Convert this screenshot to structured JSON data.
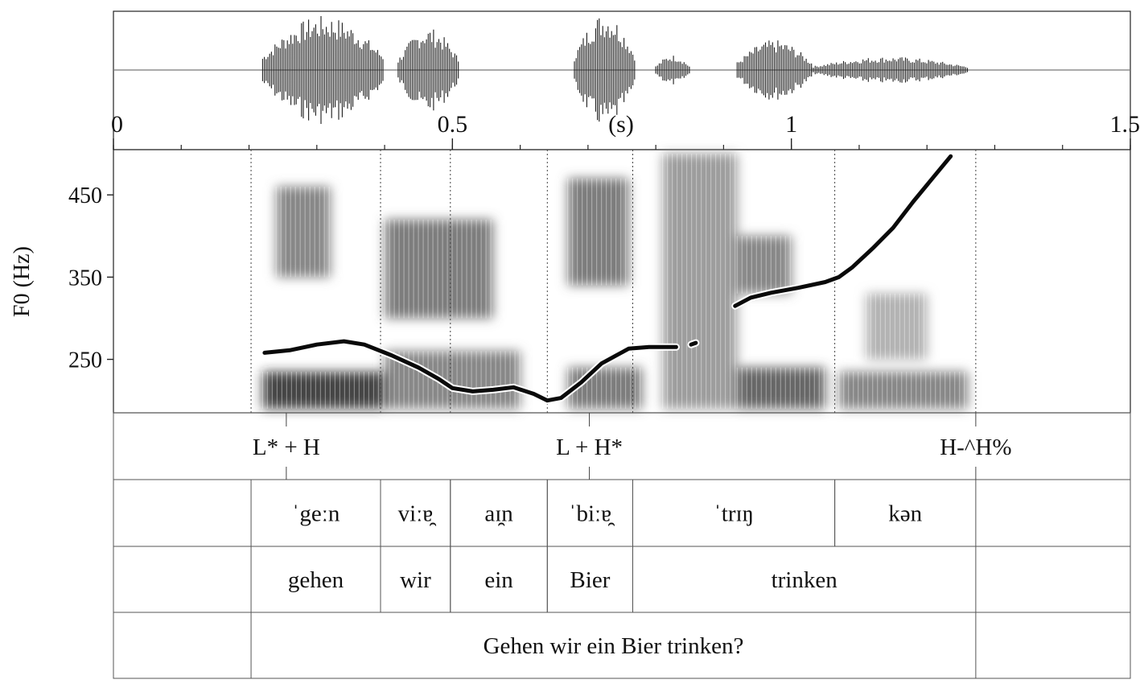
{
  "time_axis": {
    "unit_label": "(s)",
    "tick_labels": [
      "0",
      "0.5",
      "1",
      "1.5"
    ],
    "tick_values": [
      0,
      0.5,
      1,
      1.5
    ],
    "minor_tick_step": 0.1,
    "range": [
      0,
      1.5
    ]
  },
  "f0_axis": {
    "label": "F0 (Hz)",
    "tick_labels": [
      "450",
      "350",
      "250"
    ],
    "tick_values": [
      450,
      350,
      250
    ],
    "range": [
      185,
      505
    ]
  },
  "boundaries_s": [
    0.203,
    0.394,
    0.497,
    0.64,
    0.766,
    1.064,
    1.272
  ],
  "tones": [
    {
      "label": "L* + H",
      "time": 0.255
    },
    {
      "label": "L + H*",
      "time": 0.702
    },
    {
      "label": "H-^H%",
      "time": 1.272
    }
  ],
  "phones": [
    {
      "label": "ˈgeːn",
      "start": 0.203,
      "end": 0.394
    },
    {
      "label": "viːɐ̯",
      "start": 0.394,
      "end": 0.497
    },
    {
      "label": "aɪ̯n",
      "start": 0.497,
      "end": 0.64
    },
    {
      "label": "ˈbiːɐ̯",
      "start": 0.64,
      "end": 0.766
    },
    {
      "label": "ˈtrɪŋ",
      "start": 0.766,
      "end": 1.064
    },
    {
      "label": "kən",
      "start": 1.064,
      "end": 1.272
    }
  ],
  "words": [
    {
      "label": "gehen",
      "start": 0.203,
      "end": 0.394
    },
    {
      "label": "wir",
      "start": 0.394,
      "end": 0.497
    },
    {
      "label": "ein",
      "start": 0.497,
      "end": 0.64
    },
    {
      "label": "Bier",
      "start": 0.64,
      "end": 0.766
    },
    {
      "label": "trinken",
      "start": 0.766,
      "end": 1.272
    }
  ],
  "sentence": {
    "label": "Gehen wir ein Bier trinken?",
    "start": 0.203,
    "end": 1.272
  },
  "f0_contour": [
    [
      [
        0.223,
        258
      ],
      [
        0.26,
        261
      ],
      [
        0.3,
        268
      ],
      [
        0.34,
        272
      ],
      [
        0.37,
        268
      ],
      [
        0.41,
        255
      ],
      [
        0.45,
        240
      ],
      [
        0.48,
        226
      ],
      [
        0.5,
        215
      ],
      [
        0.53,
        211
      ],
      [
        0.56,
        213
      ],
      [
        0.59,
        216
      ],
      [
        0.62,
        208
      ],
      [
        0.64,
        200
      ],
      [
        0.66,
        203
      ],
      [
        0.69,
        222
      ],
      [
        0.72,
        245
      ],
      [
        0.76,
        263
      ],
      [
        0.79,
        265
      ],
      [
        0.83,
        265
      ]
    ],
    [
      [
        0.852,
        268
      ],
      [
        0.859,
        270
      ]
    ],
    [
      [
        0.917,
        315
      ],
      [
        0.94,
        325
      ],
      [
        0.97,
        331
      ],
      [
        1.01,
        337
      ],
      [
        1.05,
        344
      ],
      [
        1.07,
        350
      ],
      [
        1.09,
        362
      ],
      [
        1.12,
        385
      ],
      [
        1.15,
        410
      ],
      [
        1.18,
        442
      ],
      [
        1.21,
        472
      ],
      [
        1.235,
        497
      ]
    ]
  ],
  "waveform_segments": [
    {
      "start": 0.22,
      "end": 0.4,
      "amp": 0.9
    },
    {
      "start": 0.42,
      "end": 0.51,
      "amp": 0.7
    },
    {
      "start": 0.68,
      "end": 0.77,
      "amp": 0.95
    },
    {
      "start": 0.8,
      "end": 0.85,
      "amp": 0.25
    },
    {
      "start": 0.92,
      "end": 1.03,
      "amp": 0.5
    },
    {
      "start": 1.03,
      "end": 1.26,
      "amp": 0.22
    }
  ],
  "spectrogram_regions": [
    {
      "t0": 0.22,
      "t1": 0.4,
      "f0": 190,
      "f1": 235,
      "dark": 0.85
    },
    {
      "t0": 0.24,
      "t1": 0.32,
      "f0": 350,
      "f1": 460,
      "dark": 0.55
    },
    {
      "t0": 0.4,
      "t1": 0.56,
      "f0": 300,
      "f1": 420,
      "dark": 0.6
    },
    {
      "t0": 0.4,
      "t1": 0.6,
      "f0": 190,
      "f1": 260,
      "dark": 0.55
    },
    {
      "t0": 0.67,
      "t1": 0.76,
      "f0": 340,
      "f1": 470,
      "dark": 0.6
    },
    {
      "t0": 0.67,
      "t1": 0.78,
      "f0": 190,
      "f1": 240,
      "dark": 0.6
    },
    {
      "t0": 0.81,
      "t1": 0.92,
      "f0": 190,
      "f1": 500,
      "dark": 0.45
    },
    {
      "t0": 0.92,
      "t1": 1.0,
      "f0": 330,
      "f1": 400,
      "dark": 0.55
    },
    {
      "t0": 0.92,
      "t1": 1.05,
      "f0": 190,
      "f1": 240,
      "dark": 0.7
    },
    {
      "t0": 1.07,
      "t1": 1.26,
      "f0": 190,
      "f1": 235,
      "dark": 0.55
    },
    {
      "t0": 1.11,
      "t1": 1.2,
      "f0": 250,
      "f1": 330,
      "dark": 0.35
    }
  ]
}
